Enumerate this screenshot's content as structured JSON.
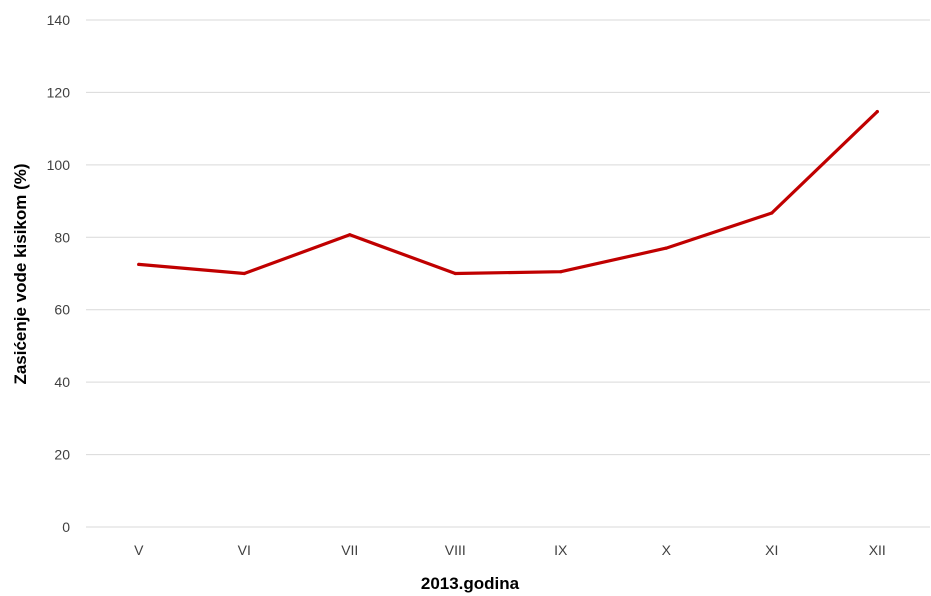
{
  "chart_data": {
    "type": "line",
    "categories": [
      "V",
      "VI",
      "VII",
      "VIII",
      "IX",
      "X",
      "XI",
      "XII"
    ],
    "series": [
      {
        "values": [
          72.5,
          70,
          80.7,
          70,
          70.5,
          77,
          86.7,
          114.7
        ]
      }
    ],
    "xlabel": "2013.godina",
    "ylabel": "Zasićenje vode kisikom (%)",
    "ylim": [
      0,
      140
    ],
    "yticks": [
      0,
      20,
      40,
      60,
      80,
      100,
      120,
      140
    ],
    "grid": true,
    "legend": "none",
    "colors": {
      "line": "#c00000",
      "grid": "#d9d9d9",
      "tick_text": "#404040"
    }
  }
}
